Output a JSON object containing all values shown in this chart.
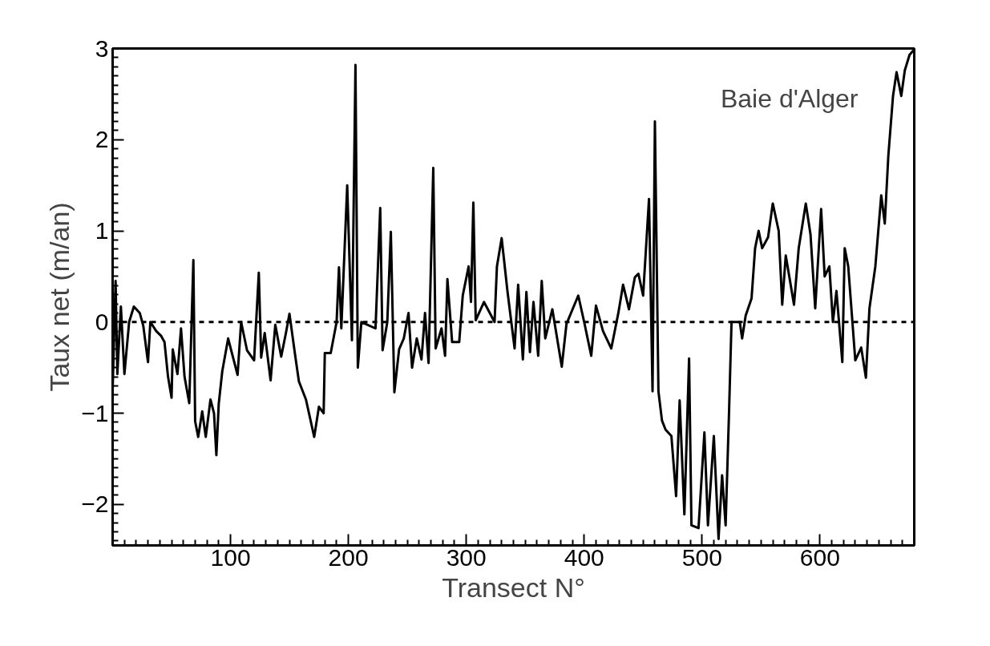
{
  "chart_data": {
    "type": "line",
    "xlabel": "Transect N°",
    "ylabel": "Taux net (m/an)",
    "annotations": [
      "Baie d'Alger"
    ],
    "xlim": [
      0,
      680
    ],
    "ylim": [
      -2.45,
      3
    ],
    "xticks": [
      100,
      200,
      300,
      400,
      500,
      600
    ],
    "yticks": [
      -2,
      -1,
      0,
      1,
      2,
      3
    ],
    "grid": false,
    "marker": "none",
    "line_style": "solid",
    "ref_lines": [
      {
        "axis": "y",
        "value": 0,
        "label": null,
        "color": "#000000",
        "line_style": "dashed"
      }
    ],
    "series": [
      {
        "color": "#000000",
        "x": [
          0,
          2.5,
          4,
          7,
          10,
          14,
          18,
          23,
          26,
          30,
          32,
          37,
          41,
          44,
          47,
          50,
          51,
          55,
          58,
          61,
          65,
          68.5,
          70,
          72.6,
          76,
          79,
          83,
          86,
          88,
          90,
          93,
          98,
          102,
          106,
          109,
          114,
          120,
          124,
          126,
          129,
          134,
          138,
          143,
          147,
          150,
          155,
          158,
          164,
          171,
          175,
          179,
          180,
          185,
          190,
          192,
          194,
          199,
          203,
          206,
          208,
          211,
          223,
          227,
          229,
          233,
          236,
          239,
          243,
          247,
          251,
          254,
          258,
          262,
          265,
          268,
          272,
          274,
          279,
          282,
          284,
          288,
          294,
          297,
          302,
          304,
          306,
          308,
          315,
          324,
          326,
          330,
          335,
          341,
          344,
          348,
          351,
          354,
          357,
          361,
          364,
          367,
          373,
          381,
          385,
          395,
          400,
          406,
          410,
          416,
          423,
          429,
          433,
          438,
          443,
          446,
          450,
          455,
          458,
          460,
          463,
          466,
          469,
          474,
          478,
          481,
          485,
          489,
          491,
          497,
          502,
          505,
          510,
          514,
          517,
          520,
          523,
          525,
          532,
          534,
          537,
          542,
          545,
          548,
          551,
          556,
          560,
          565,
          568,
          571,
          574,
          578,
          582,
          588,
          592,
          596,
          601,
          604,
          608,
          611,
          614,
          619,
          621,
          624,
          630,
          635,
          639,
          642,
          647,
          652,
          655,
          658,
          662,
          665,
          669,
          672,
          676,
          680
        ],
        "values": [
          -0.75,
          0.45,
          -0.57,
          0.17,
          -0.57,
          0,
          0.17,
          0.1,
          -0.04,
          -0.44,
          0,
          -0.1,
          -0.15,
          -0.22,
          -0.6,
          -0.83,
          -0.3,
          -0.57,
          -0.07,
          -0.6,
          -0.89,
          0.68,
          -1.09,
          -1.26,
          -0.98,
          -1.26,
          -0.85,
          -1.0,
          -1.46,
          -0.9,
          -0.54,
          -0.18,
          -0.38,
          -0.58,
          0,
          -0.31,
          -0.42,
          0.54,
          -0.39,
          -0.12,
          -0.64,
          -0.03,
          -0.38,
          -0.12,
          0.09,
          -0.38,
          -0.65,
          -0.85,
          -1.26,
          -0.93,
          -1.0,
          -0.34,
          -0.34,
          0,
          0.6,
          -0.07,
          1.5,
          -0.2,
          2.82,
          -0.5,
          0,
          -0.07,
          1.25,
          -0.31,
          0,
          0.99,
          -0.77,
          -0.3,
          -0.18,
          0.1,
          -0.5,
          -0.18,
          -0.41,
          0.1,
          -0.45,
          1.69,
          -0.29,
          -0.07,
          -0.37,
          0.47,
          -0.22,
          -0.22,
          0.29,
          0.61,
          0.22,
          1.31,
          0.02,
          0.22,
          0,
          0.61,
          0.92,
          0.33,
          -0.29,
          0.41,
          -0.41,
          0.33,
          -0.33,
          0.22,
          -0.37,
          0.45,
          -0.18,
          0.14,
          -0.49,
          -0.02,
          0.29,
          0,
          -0.37,
          0.18,
          -0.1,
          -0.29,
          0.1,
          0.41,
          0.14,
          0.49,
          0.53,
          0.29,
          1.35,
          -0.76,
          2.2,
          -0.76,
          -1.08,
          -1.18,
          -1.25,
          -1.91,
          -0.86,
          -2.11,
          -0.4,
          -2.23,
          -2.26,
          -1.21,
          -2.23,
          -1.25,
          -2.38,
          -1.68,
          -2.23,
          -0.94,
          0,
          0,
          -0.18,
          0.07,
          0.26,
          0.81,
          1.0,
          0.81,
          0.93,
          1.3,
          1.0,
          0.19,
          0.73,
          0.5,
          0.19,
          0.81,
          1.3,
          0.96,
          0.15,
          1.24,
          0.5,
          0.61,
          0,
          0.34,
          -0.44,
          0.81,
          0.61,
          -0.42,
          -0.28,
          -0.61,
          0.15,
          0.61,
          1.39,
          1.08,
          1.82,
          2.48,
          2.74,
          2.48,
          2.76,
          2.93,
          2.99
        ]
      }
    ]
  }
}
